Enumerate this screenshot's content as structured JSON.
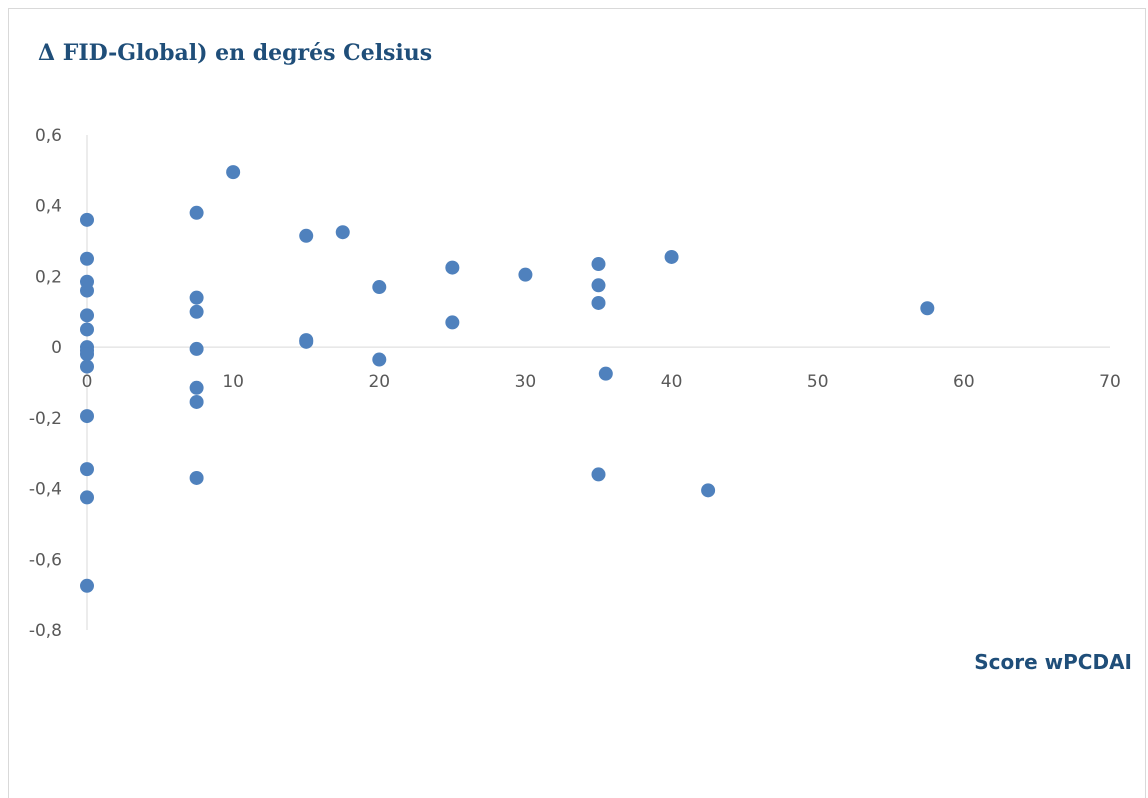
{
  "chart_data": {
    "type": "scatter",
    "title": "Δ FID-Global) en degrés Celsius",
    "xlabel": "Score wPCDAI",
    "ylabel": "",
    "xlim": [
      0,
      70
    ],
    "ylim": [
      -0.8,
      0.6
    ],
    "x_ticks": [
      "0",
      "10",
      "20",
      "30",
      "40",
      "50",
      "60",
      "70"
    ],
    "y_ticks": [
      "0,6",
      "0,4",
      "0,2",
      "0",
      "-0,2",
      "-0,4",
      "-0,6",
      "-0,8"
    ],
    "grid": false,
    "legend": "none",
    "marker_color": "#4f81bd",
    "points": [
      {
        "x": 0,
        "y": 0.36
      },
      {
        "x": 0,
        "y": 0.25
      },
      {
        "x": 0,
        "y": 0.185
      },
      {
        "x": 0,
        "y": 0.16
      },
      {
        "x": 0,
        "y": 0.09
      },
      {
        "x": 0,
        "y": 0.05
      },
      {
        "x": 0,
        "y": 0.0
      },
      {
        "x": 0,
        "y": -0.01
      },
      {
        "x": 0,
        "y": -0.02
      },
      {
        "x": 0,
        "y": -0.055
      },
      {
        "x": 0,
        "y": -0.195
      },
      {
        "x": 0,
        "y": -0.345
      },
      {
        "x": 0,
        "y": -0.425
      },
      {
        "x": 0,
        "y": -0.675
      },
      {
        "x": 7.5,
        "y": 0.38
      },
      {
        "x": 7.5,
        "y": 0.14
      },
      {
        "x": 7.5,
        "y": 0.1
      },
      {
        "x": 7.5,
        "y": -0.005
      },
      {
        "x": 7.5,
        "y": -0.115
      },
      {
        "x": 7.5,
        "y": -0.155
      },
      {
        "x": 7.5,
        "y": -0.37
      },
      {
        "x": 10,
        "y": 0.495
      },
      {
        "x": 15,
        "y": 0.315
      },
      {
        "x": 15,
        "y": 0.02
      },
      {
        "x": 15,
        "y": 0.015
      },
      {
        "x": 17.5,
        "y": 0.325
      },
      {
        "x": 20,
        "y": 0.17
      },
      {
        "x": 20,
        "y": -0.035
      },
      {
        "x": 25,
        "y": 0.225
      },
      {
        "x": 25,
        "y": 0.07
      },
      {
        "x": 30,
        "y": 0.205
      },
      {
        "x": 35,
        "y": 0.235
      },
      {
        "x": 35,
        "y": 0.175
      },
      {
        "x": 35,
        "y": 0.125
      },
      {
        "x": 35.5,
        "y": -0.075
      },
      {
        "x": 35,
        "y": -0.36
      },
      {
        "x": 40,
        "y": 0.255
      },
      {
        "x": 42.5,
        "y": -0.405
      },
      {
        "x": 57.5,
        "y": 0.11
      }
    ]
  }
}
